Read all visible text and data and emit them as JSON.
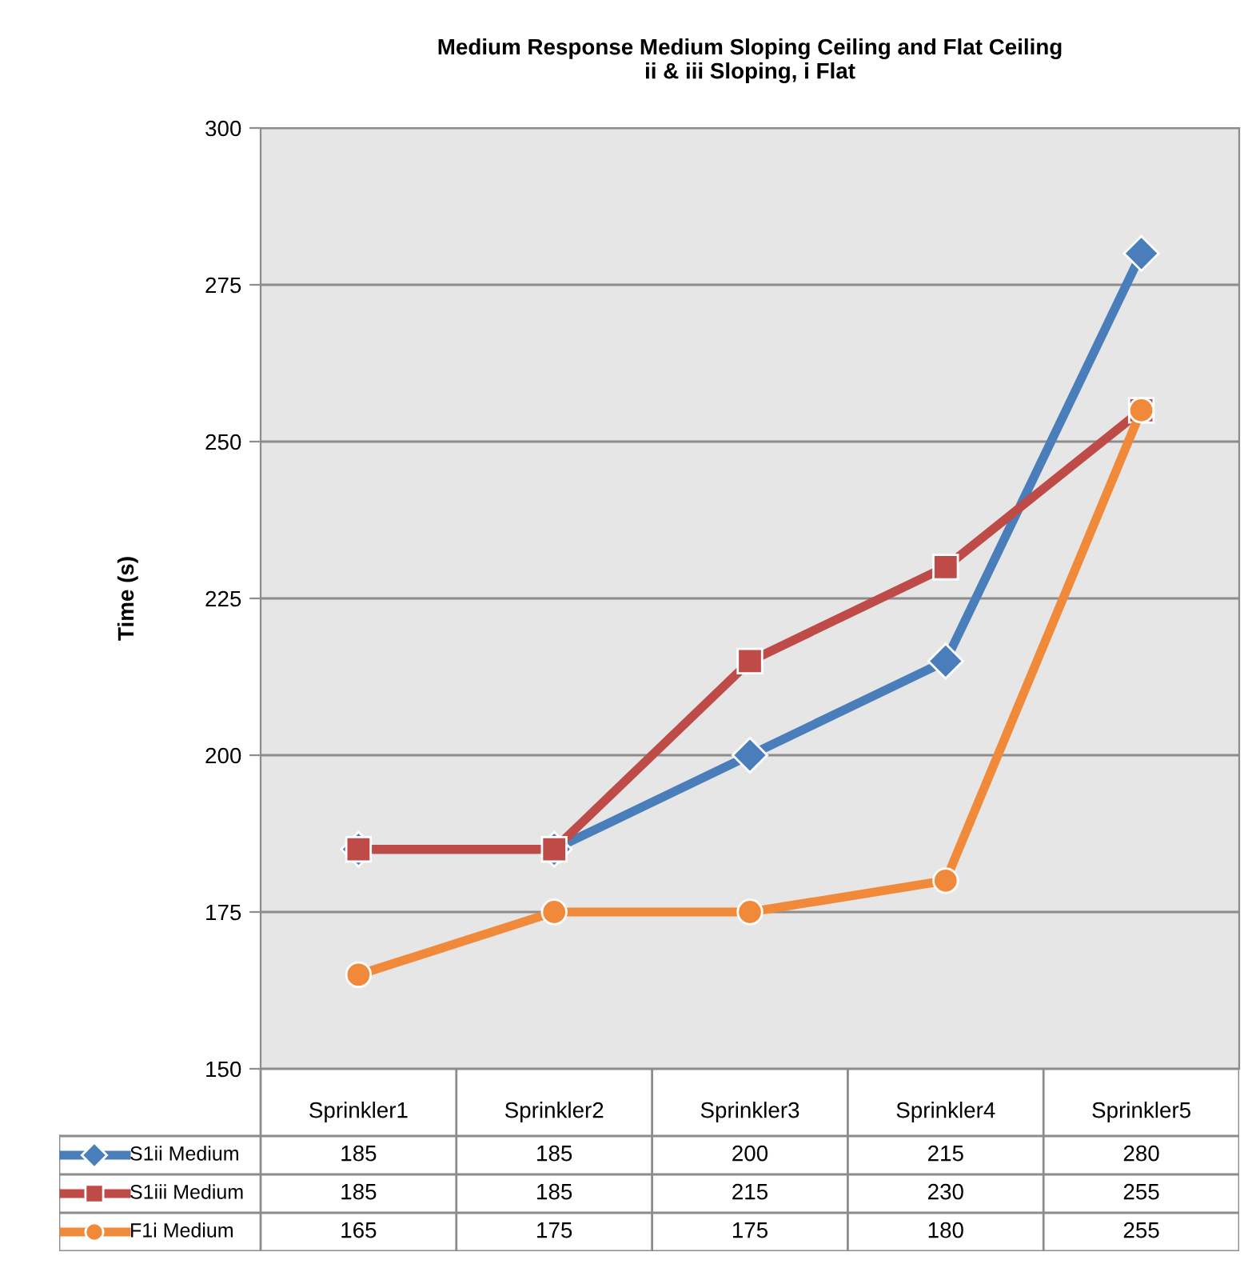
{
  "chart_data": {
    "type": "line",
    "title": "Medium Response Medium Sloping Ceiling and Flat Ceiling\nii & iii Sloping, i Flat",
    "ylabel": "Time (s)",
    "categories": [
      "Sprinkler1",
      "Sprinkler2",
      "Sprinkler3",
      "Sprinkler4",
      "Sprinkler5"
    ],
    "series": [
      {
        "name": "S1ii Medium",
        "color": "#4a7ebb",
        "marker": "diamond",
        "values": [
          185,
          185,
          200,
          215,
          280
        ]
      },
      {
        "name": "S1iii Medium",
        "color": "#be4b48",
        "marker": "square",
        "values": [
          185,
          185,
          215,
          230,
          255
        ]
      },
      {
        "name": "F1i Medium",
        "color": "#f08a3a",
        "marker": "circle",
        "values": [
          165,
          175,
          175,
          180,
          255
        ]
      }
    ],
    "ylim": [
      150,
      300
    ],
    "yticks": [
      150,
      175,
      200,
      225,
      250,
      275,
      300
    ],
    "grid": "y",
    "legend": "bottom",
    "data_labels": true
  }
}
